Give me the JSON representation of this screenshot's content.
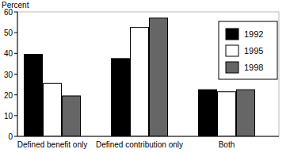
{
  "chart_data": {
    "type": "bar",
    "y_label": "Percent",
    "categories": [
      "Defined benefit only",
      "Defined contribution only",
      "Both"
    ],
    "series": [
      {
        "name": "1992",
        "color": "#000000",
        "values": [
          39.5,
          37.5,
          22.5
        ]
      },
      {
        "name": "1995",
        "color": "#ffffff",
        "values": [
          25.5,
          52.5,
          21.5
        ]
      },
      {
        "name": "1998",
        "color": "#666666",
        "values": [
          19.5,
          57,
          22.5
        ]
      }
    ],
    "ylim": [
      0,
      60
    ],
    "yticks": [
      0,
      10,
      20,
      30,
      40,
      50,
      60
    ],
    "grid": false,
    "legend": "top-right"
  }
}
